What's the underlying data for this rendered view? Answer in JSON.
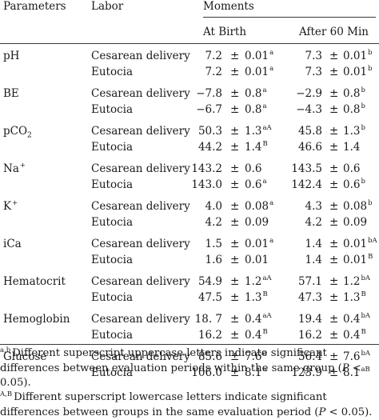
{
  "headers": {
    "parameters": "Parameters",
    "labor": "Labor",
    "moments": "Moments",
    "at_birth": "At Birth",
    "after_60": "After 60 Min"
  },
  "pm": "±",
  "rows": [
    {
      "param": "pH",
      "labor": "Cesarean delivery",
      "b_mean": "7.2",
      "b_sd": "0.01",
      "b_sup": "a",
      "a_mean": "7.3",
      "a_sd": "0.01",
      "a_sup": "b"
    },
    {
      "param": "",
      "labor": "Eutocia",
      "b_mean": "7.2",
      "b_sd": "0.01",
      "b_sup": "a",
      "a_mean": "7.3",
      "a_sd": "0.01",
      "a_sup": "b"
    },
    {
      "param": "BE",
      "labor": "Cesarean delivery",
      "b_mean": "−7.8",
      "b_sd": "0.8",
      "b_sup": "a",
      "a_mean": "−2.9",
      "a_sd": "0.8",
      "a_sup": "b"
    },
    {
      "param": "",
      "labor": "Eutocia",
      "b_mean": "−6.7",
      "b_sd": "0.8",
      "b_sup": "a",
      "a_mean": "−4.3",
      "a_sd": "0.8",
      "a_sup": "b"
    },
    {
      "param": "pCO",
      "param_sub": "2",
      "labor": "Cesarean delivery",
      "b_mean": "50.3",
      "b_sd": "1.3",
      "b_sup": "aA",
      "a_mean": "45.8",
      "a_sd": "1.3",
      "a_sup": "b"
    },
    {
      "param": "",
      "labor": "Eutocia",
      "b_mean": "44.2",
      "b_sd": "1.4",
      "b_sup": "B",
      "a_mean": "46.6",
      "a_sd": "1.4",
      "a_sup": ""
    },
    {
      "param": "Na",
      "param_sup": "+",
      "labor": "Cesarean delivery",
      "b_mean": "143.2",
      "b_sd": "0.6",
      "b_sup": "",
      "a_mean": "143.5",
      "a_sd": "0.6",
      "a_sup": ""
    },
    {
      "param": "",
      "labor": "Eutocia",
      "b_mean": "143.0",
      "b_sd": "0.6",
      "b_sup": "a",
      "a_mean": "142.4",
      "a_sd": "0.6",
      "a_sup": "b"
    },
    {
      "param": "K",
      "param_sup": "+",
      "labor": "Cesarean delivery",
      "b_mean": "4.0",
      "b_sd": "0.08",
      "b_sup": "a",
      "a_mean": "4.3",
      "a_sd": "0.08",
      "a_sup": "b"
    },
    {
      "param": "",
      "labor": "Eutocia",
      "b_mean": "4.2",
      "b_sd": "0.09",
      "b_sup": "",
      "a_mean": "4.2",
      "a_sd": "0.09",
      "a_sup": ""
    },
    {
      "param": "iCa",
      "labor": "Cesarean delivery",
      "b_mean": "1.5",
      "b_sd": "0.01",
      "b_sup": "a",
      "a_mean": "1.4",
      "a_sd": "0.01",
      "a_sup": "bA"
    },
    {
      "param": "",
      "labor": "Eutocia",
      "b_mean": "1.6",
      "b_sd": "0.01",
      "b_sup": "",
      "a_mean": "1.4",
      "a_sd": "0.01",
      "a_sup": "B"
    },
    {
      "param": "Hematocrit",
      "labor": "Cesarean delivery",
      "b_mean": "54.9",
      "b_sd": "1.2",
      "b_sup": "aA",
      "a_mean": "57.1",
      "a_sd": "1.2",
      "a_sup": "bA"
    },
    {
      "param": "",
      "labor": "Eutocia",
      "b_mean": "47.5",
      "b_sd": "1.3",
      "b_sup": "B",
      "a_mean": "47.3",
      "a_sd": "1.3",
      "a_sup": "B"
    },
    {
      "param": "Hemoglobin",
      "labor": "Cesarean delivery",
      "b_mean": "18. 7",
      "b_sd": "0.4",
      "b_sup": "aA",
      "a_mean": "19.4",
      "a_sd": "0.4",
      "a_sup": "bA"
    },
    {
      "param": "",
      "labor": "Eutocia",
      "b_mean": "16.2",
      "b_sd": "0.4",
      "b_sup": "B",
      "a_mean": "16.2",
      "a_sd": "0.4",
      "a_sup": "B"
    },
    {
      "param": "Glucose",
      "labor": "Cesarean delivery",
      "b_mean": "85.6",
      "b_sd": "7.6",
      "b_sup": "a",
      "a_mean": "56.4",
      "a_sd": "7.6",
      "a_sup": "bA"
    },
    {
      "param": "",
      "labor": "Eutocia",
      "b_mean": "106.0",
      "b_sd": "8.1",
      "b_sup": "a",
      "a_mean": "123.9",
      "a_sd": "8.1",
      "a_sup": "aB"
    }
  ],
  "footnotes": [
    {
      "mark": "a,b",
      "pre": "Different superscript uppercase letters indicate significant differences between evaluation periods within the same group (",
      "p": "P",
      "post": " < 0.05)."
    },
    {
      "mark": "A,B",
      "pre": "Different superscript lowercase letters indicate significant differences between groups in the same evaluation period (",
      "p": "P",
      "post": " < 0.05)."
    }
  ]
}
